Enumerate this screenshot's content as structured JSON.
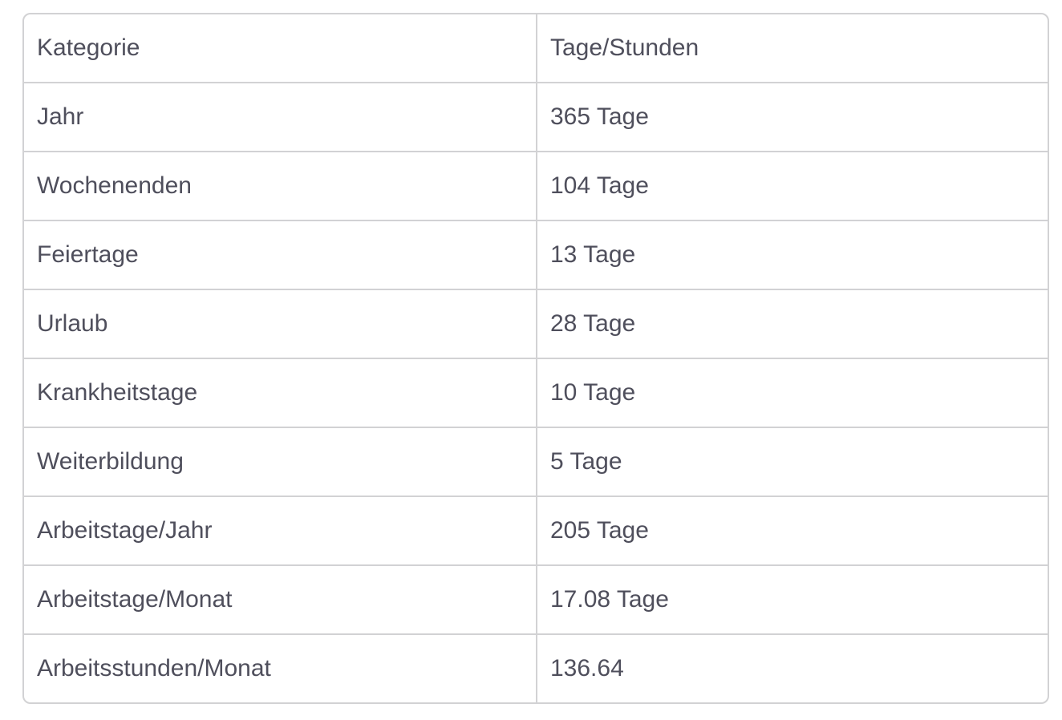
{
  "table": {
    "headers": [
      "Kategorie",
      "Tage/Stunden"
    ],
    "rows": [
      [
        "Jahr",
        "365 Tage"
      ],
      [
        "Wochenenden",
        "104 Tage"
      ],
      [
        "Feiertage",
        "13 Tage"
      ],
      [
        "Urlaub",
        "28 Tage"
      ],
      [
        "Krankheitstage",
        "10 Tage"
      ],
      [
        "Weiterbildung",
        "5 Tage"
      ],
      [
        "Arbeitstage/Jahr",
        "205 Tage"
      ],
      [
        "Arbeitstage/Monat",
        "17.08 Tage"
      ],
      [
        "Arbeitsstunden/Monat",
        "136.64"
      ]
    ]
  }
}
